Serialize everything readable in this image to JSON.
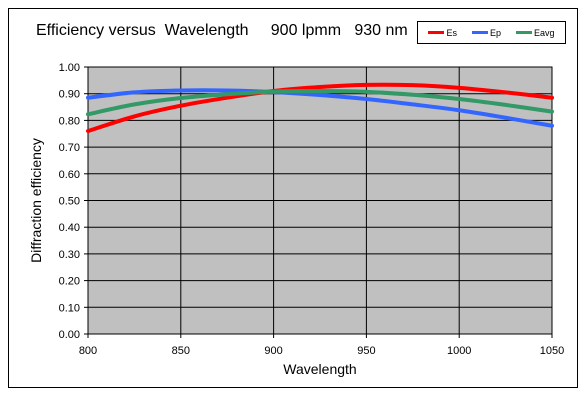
{
  "chart_data": {
    "type": "line",
    "title": "Efficiency versus  Wavelength     900 lpmm   930 nm",
    "xlabel": "Wavelength",
    "ylabel": "Diffraction  efficiency",
    "xlim": [
      800,
      1050
    ],
    "ylim": [
      0.0,
      1.0
    ],
    "x_ticks": [
      800,
      850,
      900,
      950,
      1000,
      1050
    ],
    "y_ticks": [
      0.0,
      0.1,
      0.2,
      0.3,
      0.4,
      0.5,
      0.6,
      0.7,
      0.8,
      0.9,
      1.0
    ],
    "x_tick_labels": [
      "800",
      "850",
      "900",
      "950",
      "1000",
      "1050"
    ],
    "y_tick_labels": [
      "0.00",
      "0.10",
      "0.20",
      "0.30",
      "0.40",
      "0.50",
      "0.60",
      "0.70",
      "0.80",
      "0.90",
      "1.00"
    ],
    "grid": true,
    "legend_position": "top-right",
    "plot_background": "#c0c0c0",
    "x": [
      800,
      825,
      850,
      875,
      900,
      925,
      950,
      975,
      1000,
      1025,
      1050
    ],
    "series": [
      {
        "name": "Es",
        "color": "#ff0000",
        "values": [
          0.76,
          0.815,
          0.855,
          0.885,
          0.91,
          0.925,
          0.933,
          0.932,
          0.922,
          0.905,
          0.885
        ]
      },
      {
        "name": "Ep",
        "color": "#3366ff",
        "values": [
          0.885,
          0.905,
          0.912,
          0.912,
          0.906,
          0.895,
          0.88,
          0.86,
          0.838,
          0.81,
          0.78
        ]
      },
      {
        "name": "Eavg",
        "color": "#339966",
        "values": [
          0.823,
          0.86,
          0.884,
          0.898,
          0.908,
          0.91,
          0.907,
          0.896,
          0.88,
          0.858,
          0.833
        ]
      }
    ]
  }
}
